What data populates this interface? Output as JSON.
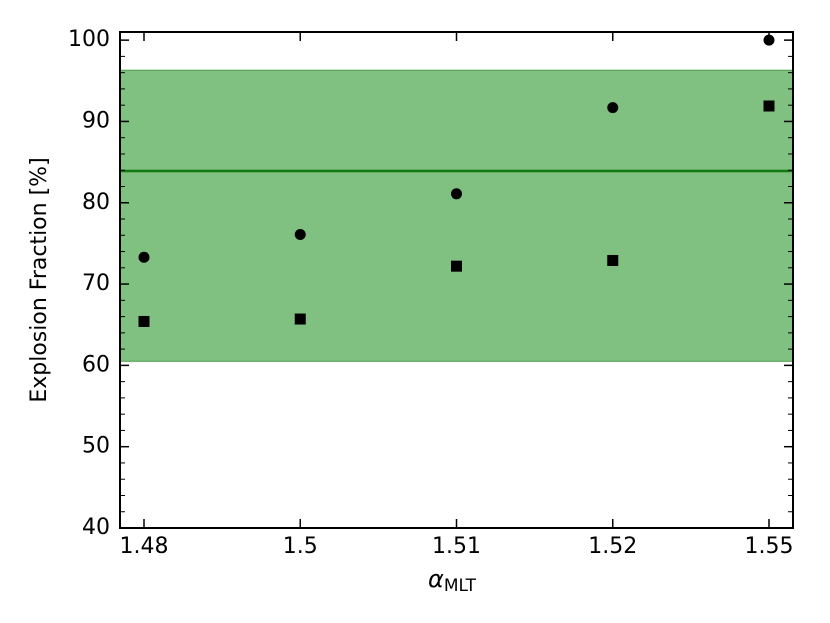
{
  "chart_data": {
    "type": "scatter",
    "y_label": "Explosion Fraction [%]",
    "x_label": [
      "α",
      "MLT"
    ],
    "categories": [
      "1.48",
      "1.5",
      "1.51",
      "1.52",
      "1.55"
    ],
    "series": [
      {
        "marker": "circle",
        "color": "#000000",
        "values": [
          73.3,
          76.1,
          81.1,
          91.7,
          100
        ]
      },
      {
        "marker": "square",
        "color": "#000000",
        "values": [
          65.4,
          65.7,
          72.2,
          72.9,
          91.9
        ]
      }
    ],
    "band": {
      "lower": 60.5,
      "upper": 96.3,
      "color": "#80c080",
      "edge": "#4f9f4f"
    },
    "hline": {
      "value": 83.9,
      "color": "#0e7a0e"
    },
    "ylim": [
      40,
      101
    ],
    "yticks": [
      40,
      50,
      60,
      70,
      80,
      90,
      100
    ],
    "yticks_minor": [
      42,
      44,
      46,
      48,
      52,
      54,
      56,
      58,
      62,
      64,
      66,
      68,
      72,
      74,
      76,
      78,
      82,
      84,
      86,
      88,
      92,
      94,
      96,
      98
    ]
  }
}
